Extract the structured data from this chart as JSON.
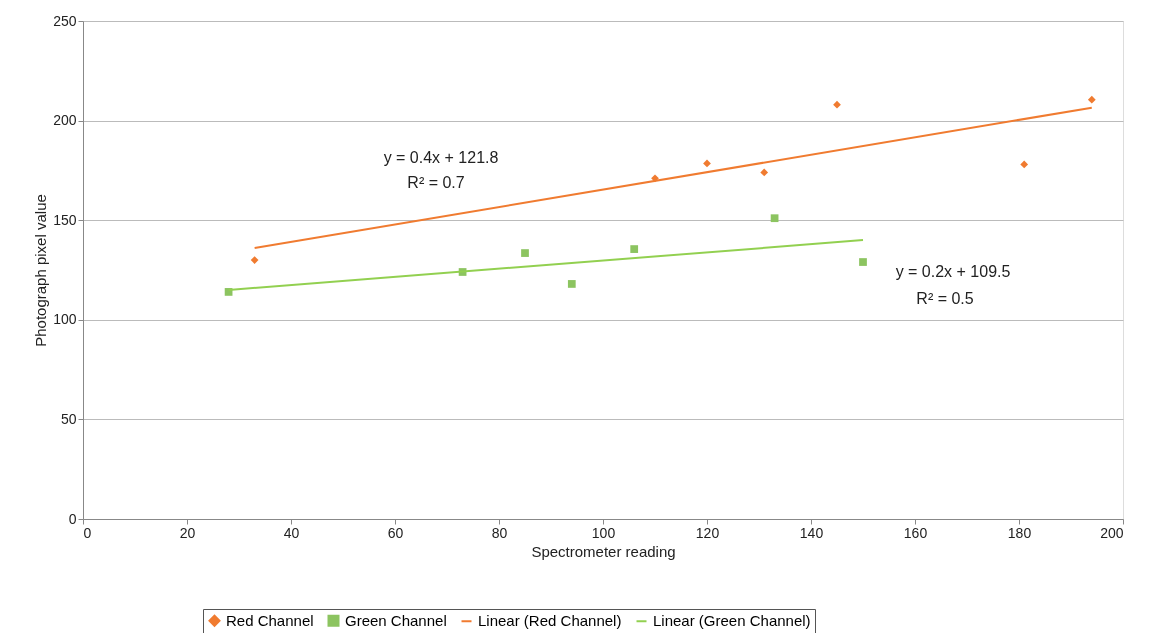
{
  "chart_data": {
    "type": "scatter",
    "xlabel": "Spectrometer reading",
    "ylabel": "Photograph pixel value",
    "xlim": [
      0,
      200
    ],
    "xticks": [
      0,
      20,
      40,
      60,
      80,
      100,
      120,
      140,
      160,
      180,
      200
    ],
    "ylim": [
      0,
      250
    ],
    "yticks": [
      0,
      50,
      100,
      150,
      200,
      250
    ],
    "grid": "y",
    "legend": "bottom",
    "series": [
      {
        "name": "Red Channel",
        "marker": "diamond",
        "color": "#f07b30",
        "x": [
          33,
          110,
          120,
          131,
          145,
          181,
          194
        ],
        "values": [
          130,
          171,
          178.5,
          174,
          208,
          178,
          210.5
        ]
      },
      {
        "name": "Green Channel",
        "marker": "square",
        "color": "#8cc460",
        "x": [
          28,
          73,
          85,
          94,
          106,
          133,
          150
        ],
        "values": [
          114,
          124,
          133.5,
          118,
          135.5,
          151,
          129
        ]
      },
      {
        "name": "Linear (Red Channel)",
        "type": "line",
        "color": "#f07b30",
        "x": [
          33,
          194
        ],
        "values": [
          136,
          206.5
        ]
      },
      {
        "name": "Linear (Green Channel)",
        "type": "line",
        "color": "#92d050",
        "x": [
          28,
          150
        ],
        "values": [
          115,
          140
        ]
      }
    ],
    "annotations": [
      "y = 0.4x + 121.8",
      "R² = 0.7",
      "y = 0.2x + 109.5",
      "R² = 0.5"
    ]
  }
}
